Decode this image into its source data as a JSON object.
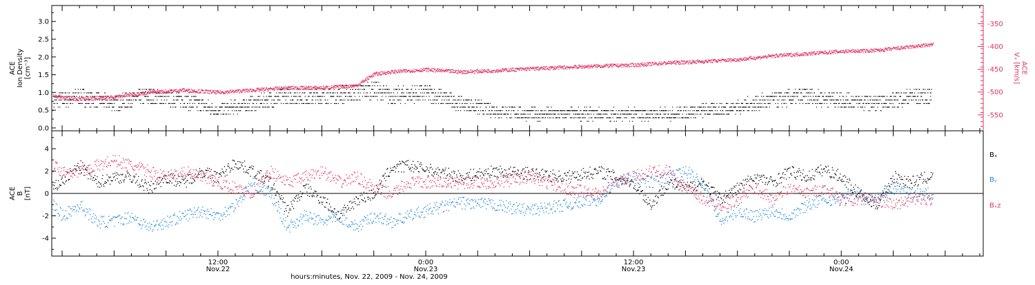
{
  "chart_data": [
    {
      "type": "scatter",
      "panel": "top",
      "ylabel_lines": [
        "ACE",
        "Ion Density",
        "[cm⁻³]"
      ],
      "ylim": [
        -0.08,
        3.45
      ],
      "yticks": [
        "0.0",
        "0.5",
        "1.0",
        "1.5",
        "2.0",
        "2.5",
        "3.0"
      ],
      "ytick_values": [
        0,
        0.5,
        1.0,
        1.5,
        2.0,
        2.5,
        3.0
      ],
      "y2label_lines": [
        "ACE",
        "Vₓ [km/s]"
      ],
      "y2lim": [
        -585,
        -310
      ],
      "y2ticks": [
        "-350",
        "-400",
        "-450",
        "-500",
        "-550"
      ],
      "y2tick_values": [
        -350,
        -400,
        -450,
        -500,
        -550
      ],
      "series": [
        {
          "color": "#000000",
          "axis": "left",
          "x": [
            0,
            2,
            4,
            6,
            8,
            10,
            12,
            14,
            16,
            18,
            20,
            21,
            22,
            24,
            26,
            28,
            30,
            32,
            34,
            36,
            38,
            40,
            42,
            44,
            46,
            48,
            50,
            52,
            54,
            56,
            57,
            58,
            59,
            60,
            61,
            62,
            63,
            64,
            66,
            68,
            70
          ],
          "y": [
            0.3,
            0.7,
            0.9,
            0.7,
            0.9,
            0.8,
            0.5,
            0.7,
            0.9,
            0.9,
            1.0,
            1.1,
            0.9,
            1.0,
            0.7,
            0.5,
            0.4,
            0.4,
            0.4,
            0.4,
            0.4,
            0.5,
            0.6,
            0.8,
            0.9,
            0.8,
            0.7,
            0.9,
            0.9,
            1.1,
            1.3,
            1.5,
            1.5,
            1.6,
            2.3,
            1.2,
            2.0,
            1.5,
            1.2,
            1.0,
            1.0
          ]
        },
        {
          "color": "#e0305f",
          "axis": "right",
          "x": [
            0,
            2,
            4,
            6,
            8,
            10,
            12,
            14,
            16,
            18,
            20,
            21,
            22,
            24,
            26,
            28,
            30,
            32,
            34,
            36,
            38,
            40,
            42,
            44,
            46,
            48,
            50,
            52,
            54,
            56,
            58,
            60,
            62,
            64,
            66,
            68,
            70
          ],
          "y": [
            -520,
            -505,
            -515,
            -510,
            -500,
            -495,
            -500,
            -495,
            -490,
            -490,
            -485,
            -460,
            -455,
            -450,
            -455,
            -452,
            -448,
            -445,
            -442,
            -440,
            -435,
            -432,
            -428,
            -420,
            -415,
            -410,
            -408,
            -400,
            -392,
            -385,
            -380,
            -370,
            -362,
            -345,
            -335,
            -330,
            -330
          ]
        }
      ]
    },
    {
      "type": "scatter",
      "panel": "bottom",
      "ylabel_lines": [
        "ACE",
        "B",
        "[nT]"
      ],
      "ylim": [
        -5.6,
        5.6
      ],
      "yticks": [
        "-4",
        "-2",
        "0",
        "2",
        "4"
      ],
      "ytick_values": [
        -4,
        -2,
        0,
        2,
        4
      ],
      "zero_line": true,
      "xticks": [
        {
          "x": 12,
          "lines": [
            "12:00",
            "Nov.22"
          ]
        },
        {
          "x": 24,
          "lines": [
            "0:00",
            "Nov.23"
          ]
        },
        {
          "x": 36,
          "lines": [
            "12:00",
            "Nov.23"
          ]
        },
        {
          "x": 48,
          "lines": [
            "0:00",
            "Nov.24"
          ]
        }
      ],
      "xlim": [
        2.4,
        56.2
      ],
      "xlabel": "hours:minutes, Nov. 22, 2009 - Nov. 24, 2009",
      "legend_position": "right",
      "series": [
        {
          "name": "Bₓ",
          "color": "#000000",
          "x": [
            2.5,
            4,
            5,
            6,
            7,
            8,
            9,
            10,
            11,
            12,
            13,
            14,
            15,
            16,
            17,
            18,
            19,
            20,
            21,
            22,
            23,
            24,
            26,
            28,
            30,
            32,
            34,
            36,
            37,
            38,
            39,
            40,
            41,
            42,
            43,
            44,
            45,
            46,
            47,
            48,
            49,
            50,
            51,
            52,
            53
          ],
          "y": [
            0.5,
            2.5,
            1.0,
            1.5,
            1.5,
            0.5,
            1.5,
            1.0,
            2.0,
            1.5,
            2.8,
            2.0,
            1.0,
            -1.5,
            0.5,
            -0.5,
            -2.0,
            -0.5,
            0.0,
            2.3,
            2.5,
            2.2,
            1.5,
            2.0,
            1.8,
            1.5,
            2.0,
            1.0,
            -1.0,
            1.0,
            0.5,
            1.0,
            -0.5,
            0.5,
            1.5,
            1.0,
            2.0,
            1.5,
            2.2,
            1.5,
            0.0,
            -1.0,
            1.5,
            1.0,
            1.5
          ]
        },
        {
          "name": "Bᵧ",
          "color": "#1e88d8",
          "x": [
            2.5,
            3,
            4,
            5,
            6,
            7,
            8,
            9,
            10,
            11,
            12,
            13,
            14,
            15,
            16,
            17,
            18,
            19,
            20,
            21,
            22,
            23,
            24,
            26,
            28,
            30,
            32,
            34,
            35,
            36,
            37,
            38,
            39,
            40,
            41,
            42,
            43,
            44,
            45,
            46,
            47,
            48,
            49,
            50,
            51,
            52,
            53
          ],
          "y": [
            -1.0,
            -2.0,
            -1.0,
            -2.5,
            -2.5,
            -2.0,
            -3.0,
            -2.5,
            -2.0,
            -1.5,
            -2.0,
            -1.0,
            1.0,
            0.0,
            -3.0,
            -2.0,
            -2.5,
            -2.0,
            -3.0,
            -2.0,
            -2.5,
            -2.0,
            -1.5,
            -0.8,
            -1.0,
            -1.5,
            -1.0,
            -0.5,
            1.0,
            1.5,
            1.0,
            1.5,
            2.0,
            1.0,
            -2.5,
            -1.5,
            -2.0,
            -1.5,
            -2.0,
            -1.0,
            -0.5,
            -0.5,
            0.0,
            -0.5,
            0.5,
            0.0,
            0.0
          ]
        },
        {
          "name": "Bₓz",
          "color": "#e0305f",
          "x": [
            2.5,
            3,
            4,
            5,
            6,
            7,
            8,
            9,
            10,
            11,
            12,
            13,
            14,
            15,
            16,
            17,
            18,
            19,
            20,
            21,
            22,
            23,
            24,
            26,
            28,
            30,
            32,
            34,
            35,
            36,
            37,
            38,
            39,
            40,
            41,
            42,
            43,
            44,
            45,
            46,
            47,
            48,
            49,
            50,
            51,
            52,
            53
          ],
          "y": [
            2.5,
            2.0,
            2.0,
            2.5,
            3.0,
            2.5,
            2.0,
            1.5,
            2.0,
            1.5,
            1.0,
            0.5,
            0.0,
            2.0,
            1.0,
            1.5,
            2.0,
            1.0,
            1.5,
            0.5,
            0.0,
            1.0,
            1.0,
            1.0,
            1.0,
            1.5,
            0.5,
            0.0,
            1.0,
            1.5,
            2.0,
            2.0,
            0.5,
            -0.5,
            -1.0,
            -0.5,
            0.5,
            -0.5,
            0.5,
            0.0,
            0.5,
            -0.5,
            -0.5,
            -0.5,
            -1.0,
            -0.5,
            -0.5
          ]
        }
      ]
    }
  ]
}
